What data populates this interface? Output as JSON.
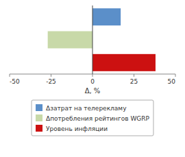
{
  "chart_data": {
    "type": "bar",
    "orientation": "horizontal",
    "categories": [
      null
    ],
    "series": [
      {
        "name": "Δзатрат на телерекламу",
        "color": "#5b8fc9",
        "values": [
          17
        ]
      },
      {
        "name": "Δпотребления рейтингов WGRP",
        "color": "#c8d9a8",
        "values": [
          -27
        ]
      },
      {
        "name": "Уровень инфляции",
        "color": "#cc1111",
        "values": [
          38
        ]
      }
    ],
    "xlim": [
      -50,
      50
    ],
    "xticks": [
      -50,
      -25,
      0,
      25,
      50
    ],
    "xlabel": "Δ, %",
    "grid": false,
    "legend": "bottom",
    "tick_labels": "x"
  }
}
